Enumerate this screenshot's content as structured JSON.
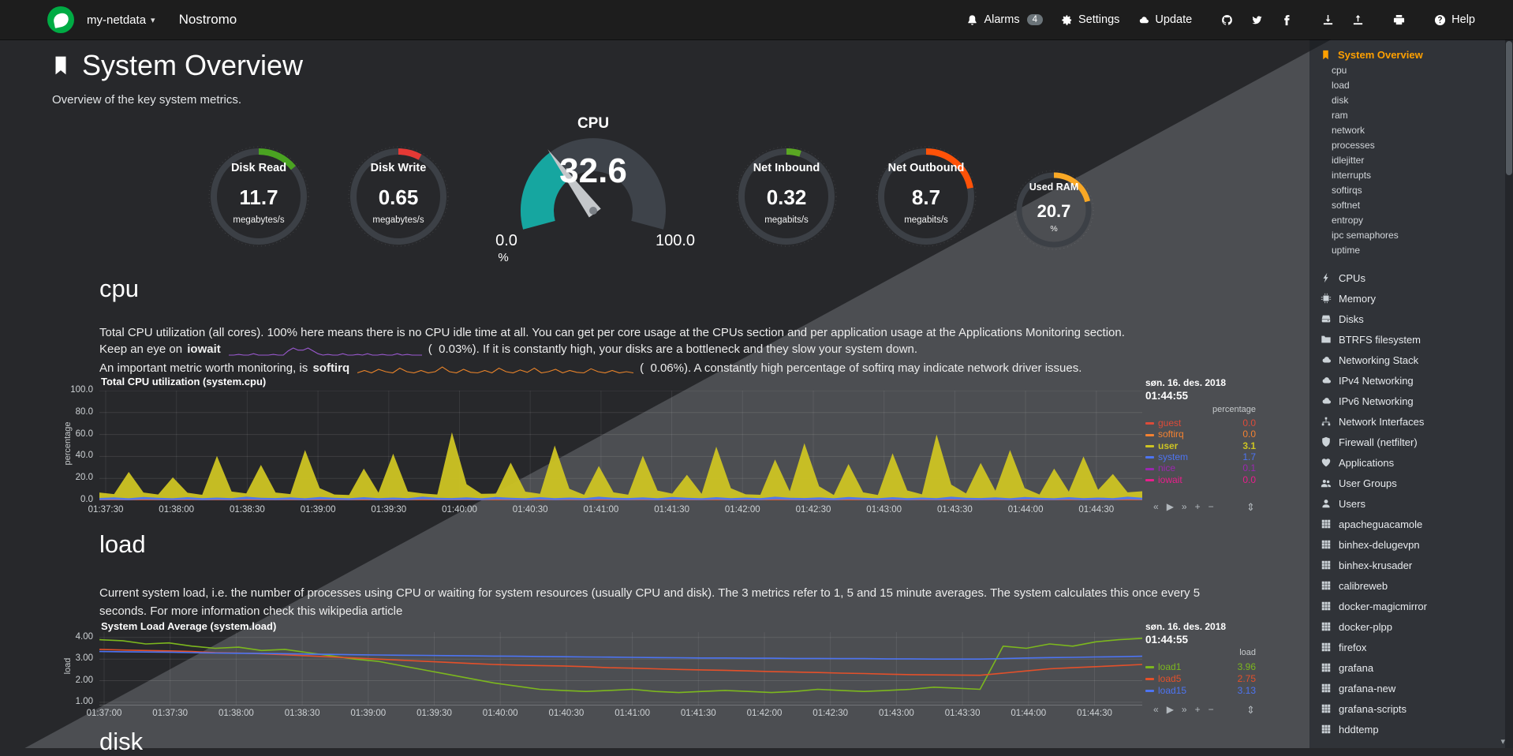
{
  "navbar": {
    "hostname": "my-netdata",
    "app_title": "Nostromo",
    "items": {
      "alarms": "Alarms",
      "alarms_badge": "4",
      "settings": "Settings",
      "update": "Update",
      "help": "Help"
    }
  },
  "page": {
    "title": "System Overview",
    "subtitle": "Overview of the key system metrics."
  },
  "gauges": [
    {
      "id": "disk-read",
      "type": "pie",
      "title": "Disk Read",
      "value": "11.7",
      "units": "megabytes/s",
      "color": "#4aa321",
      "fraction": 0.14
    },
    {
      "id": "disk-write",
      "type": "pie",
      "title": "Disk Write",
      "value": "0.65",
      "units": "megabytes/s",
      "color": "#e53935",
      "fraction": 0.08
    },
    {
      "id": "cpu-gauge",
      "type": "gauge",
      "title": "CPU",
      "value": "32.6",
      "min": "0.0",
      "max": "100.0",
      "units": "%",
      "color": "#16a6a0",
      "fraction": 0.326
    },
    {
      "id": "net-inbound",
      "type": "pie",
      "title": "Net Inbound",
      "value": "0.32",
      "units": "megabits/s",
      "color": "#5aa722",
      "fraction": 0.05
    },
    {
      "id": "net-outbound",
      "type": "pie",
      "title": "Net Outbound",
      "value": "8.7",
      "units": "megabits/s",
      "color": "#ff5208",
      "fraction": 0.22
    },
    {
      "id": "used-ram",
      "type": "pie",
      "title": "Used RAM",
      "value": "20.7",
      "units": "%",
      "color": "#f9a825",
      "fraction": 0.21
    }
  ],
  "cpu_section": {
    "heading": "cpu",
    "description": "Total CPU utilization (all cores). 100% here means there is no CPU idle time at all. You can get per core usage at the CPUs section and per application usage at the Applications Monitoring section.",
    "iowait_prefix": "Keep an eye on ",
    "iowait_term": "iowait",
    "iowait_suffix": "(  0.03%). If it is constantly high, your disks are a bottleneck and they slow your system down.",
    "iowait_color": "#9b59d0",
    "iowait_spark": [
      0,
      0,
      0.05,
      0,
      0,
      0.1,
      0,
      0,
      0,
      0.05,
      0,
      0,
      0.3,
      0.5,
      0.35,
      0.35,
      0.5,
      0.3,
      0.1,
      0,
      0.05,
      0,
      0,
      0.1,
      0,
      0,
      0.05,
      0,
      0.1,
      0,
      0,
      0.05,
      0,
      0,
      0.1,
      0,
      0.05,
      0,
      0,
      0
    ],
    "softirq_prefix": "An important metric worth monitoring, is ",
    "softirq_term": "softirq",
    "softirq_suffix": "(  0.06%). A constantly high percentage of softirq may indicate network driver issues.",
    "softirq_color": "#e8832a",
    "softirq_spark": [
      0.1,
      0.3,
      0.1,
      0.4,
      0.2,
      0.1,
      0.5,
      0.2,
      0.1,
      0.3,
      0.1,
      0.2,
      0.6,
      0.2,
      0.1,
      0.4,
      0.15,
      0.1,
      0.3,
      0.1,
      0.5,
      0.2,
      0.1,
      0.35,
      0.15,
      0.5,
      0.1,
      0.2,
      0.4,
      0.1,
      0.3,
      0.15,
      0.1,
      0.45,
      0.2,
      0.1,
      0.3,
      0.1,
      0.2,
      0.1
    ]
  },
  "load_section": {
    "heading": "load",
    "description": "Current system load, i.e. the number of processes using CPU or waiting for system resources (usually CPU and disk). The 3 metrics refer to 1, 5 and 15 minute averages. The system calculates this once every 5 seconds. For more information check this wikipedia article"
  },
  "disk_section": {
    "heading": "disk"
  },
  "toolbox": {
    "buttons": [
      "«",
      "▶",
      "»",
      "+",
      "−"
    ],
    "resize": "⇕"
  },
  "charts": [
    {
      "id": "system-cpu",
      "type": "area",
      "stacked": true,
      "title": "Total CPU utilization (system.cpu)",
      "ylabel": "percentage",
      "ylim": [
        0,
        100
      ],
      "yticks": [
        "100.0",
        "80.0",
        "60.0",
        "40.0",
        "20.0",
        "0.0"
      ],
      "xticks": [
        "01:37:30",
        "01:38:00",
        "01:38:30",
        "01:39:00",
        "01:39:30",
        "01:40:00",
        "01:40:30",
        "01:41:00",
        "01:41:30",
        "01:42:00",
        "01:42:30",
        "01:43:00",
        "01:43:30",
        "01:44:00",
        "01:44:30"
      ],
      "date": "søn. 16. des. 2018",
      "time": "01:44:55",
      "legend_units": "percentage",
      "legend": [
        {
          "name": "guest",
          "value": "0.0",
          "color": "#dd4b39",
          "highlight": false
        },
        {
          "name": "softirq",
          "value": "0.0",
          "color": "#f58231",
          "highlight": false
        },
        {
          "name": "user",
          "value": "3.1",
          "color": "#cdc423",
          "highlight": true
        },
        {
          "name": "system",
          "value": "1.7",
          "color": "#4d74f2",
          "highlight": false
        },
        {
          "name": "nice",
          "value": "0.1",
          "color": "#9c27b0",
          "highlight": false
        },
        {
          "name": "iowait",
          "value": "0.0",
          "color": "#e91e8c",
          "highlight": false
        }
      ],
      "series": [
        {
          "name": "softirq",
          "color": "#e0592a",
          "values": [
            0.3,
            0.6,
            0.2,
            0.8,
            0.4,
            0.3,
            0.7,
            0.2,
            0.5,
            0.3,
            0.9,
            0.4,
            0.3,
            0.6,
            0.2,
            0.8,
            0.4,
            0.3,
            0.7,
            0.2,
            0.5,
            0.3,
            0.9,
            0.4,
            0.3,
            0.6,
            0.2,
            0.8,
            0.4,
            0.3,
            0.7,
            0.2,
            0.5,
            0.3,
            0.9,
            0.4,
            0.3,
            0.6,
            0.2,
            0.8,
            0.4,
            0.3,
            0.7,
            0.2,
            0.5,
            0.3,
            0.9,
            0.4,
            0.3,
            0.6,
            0.2,
            0.8,
            0.4,
            0.3,
            0.7,
            0.2,
            0.5,
            0.3,
            0.9,
            0.4,
            0.3,
            0.6,
            0.2,
            0.8,
            0.4,
            0.3,
            0.7,
            0.2,
            0.5,
            0.3,
            0.9,
            0.4
          ]
        },
        {
          "name": "system",
          "color": "#4d74f2",
          "values": [
            1.8,
            2.1,
            1.7,
            2.3,
            1.9,
            1.6,
            2.2,
            1.8,
            2.0,
            1.7,
            2.4,
            1.9,
            1.8,
            2.1,
            1.7,
            2.3,
            1.9,
            1.6,
            2.2,
            1.8,
            2.0,
            1.7,
            2.4,
            1.9,
            1.8,
            2.1,
            1.7,
            2.3,
            1.9,
            1.6,
            2.2,
            1.8,
            2.0,
            1.7,
            2.4,
            1.9,
            1.8,
            2.1,
            1.7,
            2.3,
            1.9,
            1.6,
            2.2,
            1.8,
            2.0,
            1.7,
            2.4,
            1.9,
            1.8,
            2.1,
            1.7,
            2.3,
            1.9,
            1.6,
            2.2,
            1.8,
            2.0,
            1.7,
            2.4,
            1.9,
            1.8,
            2.1,
            1.7,
            2.3,
            1.9,
            1.6,
            2.2,
            1.8,
            2.0,
            1.7,
            2.4,
            1.9
          ]
        },
        {
          "name": "user",
          "color": "#cdc423",
          "values": [
            5,
            3,
            24,
            4,
            3,
            19,
            4,
            3,
            38,
            6,
            3,
            30,
            5,
            3,
            44,
            8,
            3,
            3,
            26,
            5,
            40,
            6,
            3,
            3,
            60,
            12,
            4,
            3,
            32,
            6,
            3,
            48,
            8,
            3,
            28,
            5,
            3,
            38,
            7,
            3,
            21,
            4,
            46,
            9,
            3,
            3,
            34,
            6,
            50,
            10,
            3,
            30,
            5,
            3,
            40,
            7,
            3,
            58,
            11,
            4,
            32,
            6,
            44,
            8,
            3,
            27,
            5,
            38,
            7,
            22,
            4,
            6
          ]
        }
      ]
    },
    {
      "id": "system-load",
      "type": "line",
      "stacked": false,
      "title": "System Load Average (system.load)",
      "ylabel": "load",
      "ylim": [
        0.85,
        4.25
      ],
      "yticks": [
        "4.00",
        "3.00",
        "2.00",
        "1.00"
      ],
      "xticks": [
        "01:37:00",
        "01:37:30",
        "01:38:00",
        "01:38:30",
        "01:39:00",
        "01:39:30",
        "01:40:00",
        "01:40:30",
        "01:41:00",
        "01:41:30",
        "01:42:00",
        "01:42:30",
        "01:43:00",
        "01:43:30",
        "01:44:00",
        "01:44:30"
      ],
      "date": "søn. 16. des. 2018",
      "time": "01:44:55",
      "legend_units": "load",
      "legend": [
        {
          "name": "load1",
          "value": "3.96",
          "color": "#7cb71e",
          "highlight": false
        },
        {
          "name": "load5",
          "value": "2.75",
          "color": "#e4502a",
          "highlight": false
        },
        {
          "name": "load15",
          "value": "3.13",
          "color": "#4d74f2",
          "highlight": false
        }
      ],
      "series": [
        {
          "name": "load1",
          "color": "#7cb71e",
          "values": [
            3.9,
            3.85,
            3.7,
            3.75,
            3.6,
            3.5,
            3.55,
            3.4,
            3.45,
            3.3,
            3.15,
            3.0,
            2.9,
            2.7,
            2.5,
            2.3,
            2.1,
            1.9,
            1.75,
            1.6,
            1.55,
            1.5,
            1.55,
            1.6,
            1.5,
            1.45,
            1.5,
            1.55,
            1.5,
            1.45,
            1.5,
            1.6,
            1.55,
            1.5,
            1.55,
            1.6,
            1.7,
            1.65,
            1.6,
            3.6,
            3.5,
            3.7,
            3.6,
            3.8,
            3.9,
            3.96
          ]
        },
        {
          "name": "load5",
          "color": "#e4502a",
          "values": [
            3.45,
            3.42,
            3.4,
            3.38,
            3.35,
            3.3,
            3.28,
            3.25,
            3.2,
            3.15,
            3.1,
            3.05,
            3.0,
            2.95,
            2.9,
            2.85,
            2.8,
            2.75,
            2.72,
            2.7,
            2.68,
            2.65,
            2.6,
            2.58,
            2.55,
            2.52,
            2.5,
            2.48,
            2.45,
            2.42,
            2.4,
            2.38,
            2.35,
            2.33,
            2.3,
            2.28,
            2.27,
            2.26,
            2.25,
            2.35,
            2.45,
            2.55,
            2.6,
            2.65,
            2.7,
            2.75
          ]
        },
        {
          "name": "load15",
          "color": "#4d74f2",
          "values": [
            3.35,
            3.34,
            3.33,
            3.32,
            3.3,
            3.28,
            3.27,
            3.26,
            3.25,
            3.23,
            3.22,
            3.2,
            3.19,
            3.18,
            3.17,
            3.16,
            3.15,
            3.14,
            3.13,
            3.12,
            3.11,
            3.1,
            3.09,
            3.08,
            3.07,
            3.06,
            3.05,
            3.05,
            3.04,
            3.04,
            3.03,
            3.03,
            3.02,
            3.02,
            3.01,
            3.01,
            3.0,
            3.0,
            3.0,
            3.02,
            3.05,
            3.07,
            3.08,
            3.1,
            3.11,
            3.13
          ]
        }
      ]
    }
  ],
  "sidebar": {
    "active": {
      "label": "System Overview",
      "icon": "bookmark"
    },
    "submenu": [
      "cpu",
      "load",
      "disk",
      "ram",
      "network",
      "processes",
      "idlejitter",
      "interrupts",
      "softirqs",
      "softnet",
      "entropy",
      "ipc semaphores",
      "uptime"
    ],
    "sections": [
      {
        "label": "CPUs",
        "icon": "bolt"
      },
      {
        "label": "Memory",
        "icon": "chip"
      },
      {
        "label": "Disks",
        "icon": "hdd"
      },
      {
        "label": "BTRFS filesystem",
        "icon": "folder"
      },
      {
        "label": "Networking Stack",
        "icon": "cloud"
      },
      {
        "label": "IPv4 Networking",
        "icon": "cloud"
      },
      {
        "label": "IPv6 Networking",
        "icon": "cloud"
      },
      {
        "label": "Network Interfaces",
        "icon": "sitemap"
      },
      {
        "label": "Firewall (netfilter)",
        "icon": "shield"
      },
      {
        "label": "Applications",
        "icon": "heart"
      },
      {
        "label": "User Groups",
        "icon": "users"
      },
      {
        "label": "Users",
        "icon": "user"
      },
      {
        "label": "apacheguacamole",
        "icon": "grid"
      },
      {
        "label": "binhex-delugevpn",
        "icon": "grid"
      },
      {
        "label": "binhex-krusader",
        "icon": "grid"
      },
      {
        "label": "calibreweb",
        "icon": "grid"
      },
      {
        "label": "docker-magicmirror",
        "icon": "grid"
      },
      {
        "label": "docker-plpp",
        "icon": "grid"
      },
      {
        "label": "firefox",
        "icon": "grid"
      },
      {
        "label": "grafana",
        "icon": "grid"
      },
      {
        "label": "grafana-new",
        "icon": "grid"
      },
      {
        "label": "grafana-scripts",
        "icon": "grid"
      },
      {
        "label": "hddtemp",
        "icon": "grid"
      }
    ]
  }
}
